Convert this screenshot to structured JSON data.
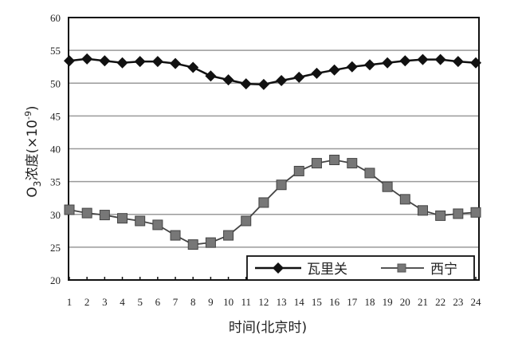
{
  "chart_data": {
    "type": "line",
    "title": "",
    "xlabel": "时间(北京时)",
    "ylabel": "O3浓度(×10⁻⁹)",
    "x": [
      1,
      2,
      3,
      4,
      5,
      6,
      7,
      8,
      9,
      10,
      11,
      12,
      13,
      14,
      15,
      16,
      17,
      18,
      19,
      20,
      21,
      22,
      23,
      24
    ],
    "ylim": [
      20,
      60
    ],
    "yticks": [
      20,
      25,
      30,
      35,
      40,
      45,
      50,
      55,
      60
    ],
    "grid": "horizontal",
    "legend_position": "lower right (inside)",
    "series": [
      {
        "name": "瓦里关",
        "marker": "diamond",
        "color": "#111111",
        "values": [
          53.4,
          53.7,
          53.4,
          53.1,
          53.3,
          53.3,
          53.0,
          52.4,
          51.1,
          50.5,
          49.9,
          49.8,
          50.4,
          50.9,
          51.5,
          52.0,
          52.5,
          52.8,
          53.1,
          53.4,
          53.6,
          53.6,
          53.3,
          53.1
        ]
      },
      {
        "name": "西宁",
        "marker": "square",
        "color": "#777777",
        "values": [
          30.7,
          30.2,
          29.9,
          29.4,
          29.0,
          28.4,
          26.8,
          25.4,
          25.7,
          26.8,
          29.0,
          31.8,
          34.5,
          36.6,
          37.8,
          38.3,
          37.8,
          36.3,
          34.2,
          32.3,
          30.6,
          29.8,
          30.1,
          30.3
        ]
      }
    ]
  },
  "axis": {
    "y_label_main": "O",
    "y_label_sub": "3",
    "y_label_rest": "浓度(×10",
    "y_label_sup": "-9",
    "y_label_close": ")",
    "x_label": "时间(北京时)"
  },
  "legend": {
    "item1": "瓦里关",
    "item2": "西宁"
  }
}
